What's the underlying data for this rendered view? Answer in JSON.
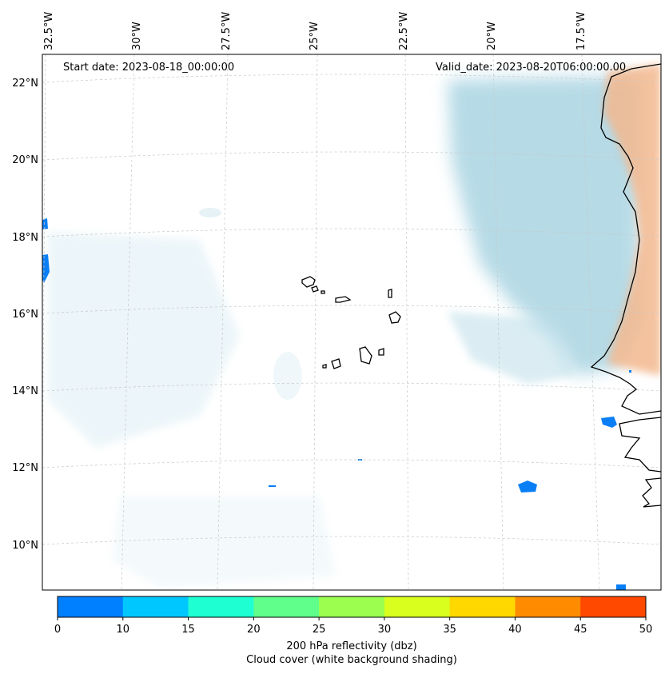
{
  "map": {
    "start_label": "Start date: 2023-08-18_00:00:00",
    "valid_label": "Valid_date: 2023-08-20T06:00:00.00",
    "lon_labels": [
      "32.5°W",
      "30°W",
      "27.5°W",
      "25°W",
      "22.5°W",
      "20°W",
      "17.5°W"
    ],
    "lat_labels": [
      "22°N",
      "20°N",
      "18°N",
      "16°N",
      "14°N",
      "12°N",
      "10°N"
    ],
    "gridlines": true,
    "cloud_color": "#a9d4e2",
    "land_reflectivity_color": "#f3b88e",
    "echo_color": "#0a7ff5",
    "coastline_color": "#000000"
  },
  "colorbar": {
    "title": "200 hPa reflectivity (dbz)",
    "subtitle": "Cloud cover (white background shading)",
    "ticks": [
      "0",
      "10",
      "15",
      "20",
      "25",
      "30",
      "35",
      "40",
      "45",
      "50"
    ],
    "colors": [
      "#0080ff",
      "#00c8ff",
      "#1effd2",
      "#60ff8c",
      "#9cff50",
      "#d8ff1e",
      "#ffd800",
      "#ff8c00",
      "#ff4800"
    ]
  }
}
